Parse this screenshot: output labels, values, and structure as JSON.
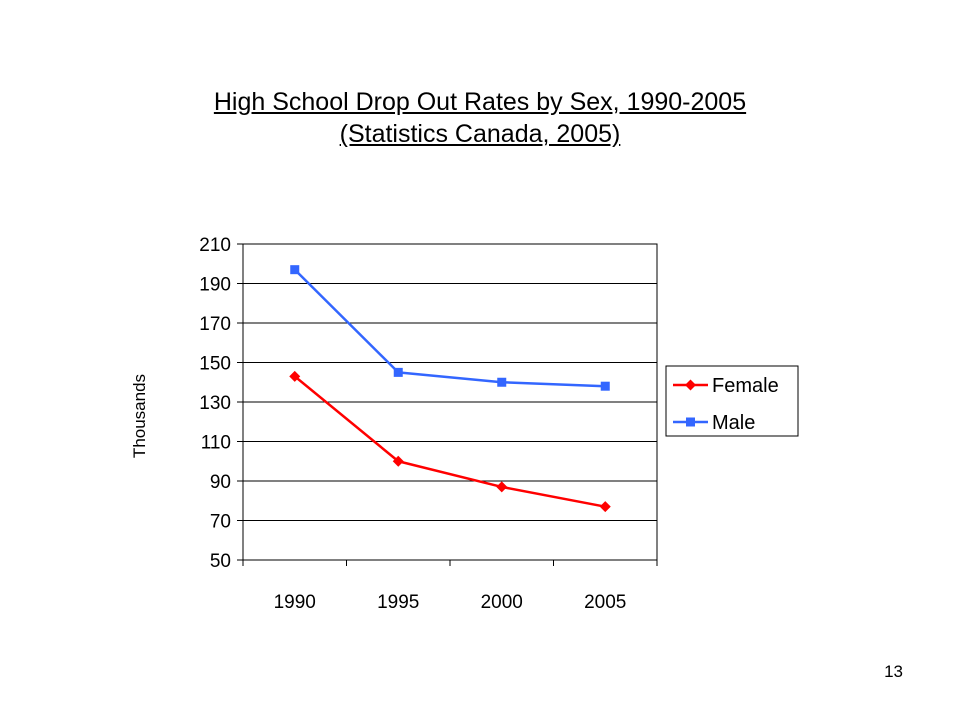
{
  "slide": {
    "title_line1": "High School Drop Out Rates by Sex, 1990-2005",
    "title_line2": "(Statistics Canada, 2005)",
    "page_number": "13"
  },
  "chart_data": {
    "type": "line",
    "title": "High School Drop Out Rates by Sex, 1990-2005",
    "subtitle": "(Statistics Canada, 2005)",
    "xlabel": "",
    "ylabel": "Thousands",
    "categories": [
      "1990",
      "1995",
      "2000",
      "2005"
    ],
    "ylim": [
      50,
      210
    ],
    "yticks": [
      50,
      70,
      90,
      110,
      130,
      150,
      170,
      190,
      210
    ],
    "grid": true,
    "legend_position": "right",
    "series": [
      {
        "name": "Female",
        "values": [
          143,
          100,
          87,
          77
        ],
        "color": "#ff0000",
        "marker": "diamond"
      },
      {
        "name": "Male",
        "values": [
          197,
          145,
          140,
          138
        ],
        "color": "#3366ff",
        "marker": "square"
      }
    ]
  }
}
